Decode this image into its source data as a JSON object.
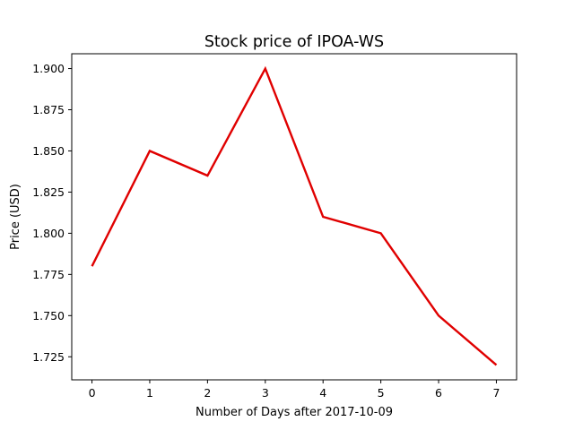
{
  "chart_data": {
    "type": "line",
    "title": "Stock price of IPOA-WS",
    "xlabel": "Number of Days after 2017-10-09",
    "ylabel": "Price (USD)",
    "x": [
      0,
      1,
      2,
      3,
      4,
      5,
      6,
      7
    ],
    "series": [
      {
        "values": [
          1.78,
          1.85,
          1.835,
          1.9,
          1.81,
          1.8,
          1.75,
          1.72
        ],
        "color": "#e00000"
      }
    ],
    "xlim": [
      -0.35,
      7.35
    ],
    "ylim": [
      1.711,
      1.909
    ],
    "x_ticks": [
      0,
      1,
      2,
      3,
      4,
      5,
      6,
      7
    ],
    "x_tick_labels": [
      "0",
      "1",
      "2",
      "3",
      "4",
      "5",
      "6",
      "7"
    ],
    "y_ticks": [
      1.725,
      1.75,
      1.775,
      1.8,
      1.825,
      1.85,
      1.875,
      1.9
    ],
    "y_tick_labels": [
      "1.725",
      "1.750",
      "1.775",
      "1.800",
      "1.825",
      "1.850",
      "1.875",
      "1.900"
    ],
    "grid": false,
    "legend": "none"
  }
}
